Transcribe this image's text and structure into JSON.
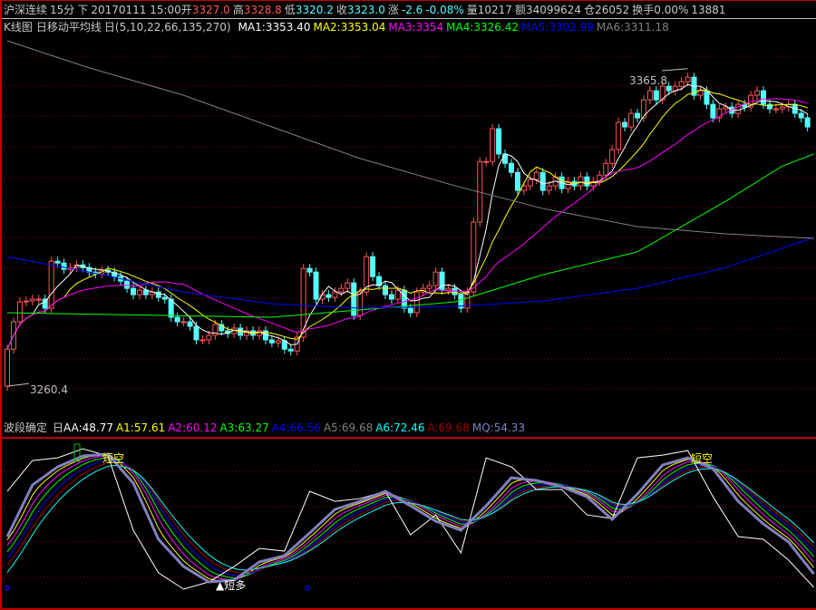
{
  "header": {
    "name": "沪深连续",
    "period": "15分",
    "direction": "下",
    "datetime": "20170111 15:00",
    "open_label": "开",
    "open": "3327.0",
    "high_label": "高",
    "high": "3328.8",
    "low_label": "低",
    "low": "3320.2",
    "close_label": "收",
    "close": "3323.0",
    "change_label": "涨",
    "change": "-2.6",
    "change_pct": "-0.08%",
    "volume_label": "量",
    "volume": "10217",
    "amount_label": "额",
    "amount": "34099624",
    "oi_label": "仓",
    "oi": "26052",
    "turnover_label": "换手",
    "turnover": "0.00%",
    "extra": "13881"
  },
  "ma_legend": {
    "chart_name": "K线图",
    "indicator": "日移动平均线",
    "params": "日(5,10,22,66,135,270)",
    "items": [
      {
        "label": "MA1:3353.40",
        "color": "#ffffff"
      },
      {
        "label": "MA2:3353.04",
        "color": "#ffff00"
      },
      {
        "label": "MA3:3354",
        "color": "#ff00ff"
      },
      {
        "label": "MA4:3326.42",
        "color": "#00ff00"
      },
      {
        "label": "MA5:3302.99",
        "color": "#0000ff"
      },
      {
        "label": "MA6:3311.18",
        "color": "#808080"
      }
    ]
  },
  "indicator_legend": {
    "name": "波段确定",
    "prefix": "日",
    "items": [
      {
        "label": "AA:48.77",
        "color": "#ffffff"
      },
      {
        "label": "A1:57.61",
        "color": "#ffff00"
      },
      {
        "label": "A2:60.12",
        "color": "#ff00ff"
      },
      {
        "label": "A3:63.27",
        "color": "#00ff00"
      },
      {
        "label": "A4:66.56",
        "color": "#0000ff"
      },
      {
        "label": "A5:69.68",
        "color": "#808080"
      },
      {
        "label": "A6:72.46",
        "color": "#00ffff"
      },
      {
        "label": "A:69.68",
        "color": "#a00000"
      },
      {
        "label": "MQ:54.33",
        "color": "#8080c0"
      }
    ]
  },
  "annotations": {
    "high_label": "3365.8",
    "low_label": "3260.4",
    "short_sell_1": "短空",
    "short_sell_2": "短空",
    "short_buy": "▲短多"
  },
  "colors": {
    "up": "#ff5555",
    "down": "#54fcfc",
    "grid": "#8b0000",
    "border": "#c00000"
  },
  "chart_data": [
    {
      "type": "candlestick",
      "ylim": [
        3249.6,
        3376.6
      ],
      "grid": true,
      "first_open": 3260.4,
      "closes": [
        3272.7,
        3281.8,
        3288.4,
        3288.7,
        3289.3,
        3289.3,
        3286.3,
        3301.9,
        3301.3,
        3299.2,
        3299.8,
        3300.7,
        3299.8,
        3298.3,
        3297.7,
        3298.9,
        3298.3,
        3296.8,
        3295.3,
        3292.9,
        3290.8,
        3292.3,
        3290.8,
        3291.7,
        3289.9,
        3289.3,
        3283.3,
        3281.8,
        3281.8,
        3280.3,
        3275.8,
        3275.8,
        3277.3,
        3280.9,
        3278.8,
        3277.9,
        3279.7,
        3277.3,
        3278.8,
        3277.3,
        3278.8,
        3275.8,
        3274.8,
        3275.5,
        3272.7,
        3272.1,
        3276.7,
        3299.5,
        3298.3,
        3289.3,
        3290.8,
        3289.9,
        3291.7,
        3292.9,
        3294.7,
        3283.9,
        3291.7,
        3303.4,
        3296.8,
        3293.8,
        3290.8,
        3289.3,
        3292.3,
        3286.3,
        3284.8,
        3291.7,
        3292.9,
        3293.8,
        3298.3,
        3292.3,
        3292.9,
        3290.8,
        3286.3,
        3291.7,
        3314.9,
        3335.0,
        3335.0,
        3345.9,
        3337.5,
        3334.4,
        3331.4,
        3325.4,
        3326.9,
        3329.0,
        3331.4,
        3325.4,
        3326.9,
        3329.9,
        3326.0,
        3328.4,
        3326.9,
        3329.9,
        3326.9,
        3328.4,
        3330.5,
        3334.4,
        3339.0,
        3348.0,
        3346.5,
        3351.0,
        3349.5,
        3355.5,
        3358.5,
        3355.5,
        3360.0,
        3358.5,
        3360.0,
        3361.5,
        3363.0,
        3357.0,
        3358.5,
        3354.0,
        3349.5,
        3352.5,
        3353.1,
        3351.0,
        3354.0,
        3353.1,
        3357.0,
        3358.5,
        3354.0,
        3352.5,
        3352.5,
        3353.1,
        3354.0,
        3351.0,
        3349.5,
        3346.5
      ],
      "ma_periods": [
        5,
        10,
        22
      ],
      "ma_long": {
        "MA4": [
          [
            0,
            3284.8
          ],
          [
            42,
            3283.3
          ],
          [
            71,
            3288.4
          ],
          [
            85,
            3297.4
          ],
          [
            100,
            3305.0
          ],
          [
            114,
            3321.8
          ],
          [
            123,
            3333.5
          ],
          [
            128,
            3337.5
          ]
        ],
        "MA5": [
          [
            0,
            3303.4
          ],
          [
            13,
            3298.3
          ],
          [
            28,
            3291.7
          ],
          [
            42,
            3287.8
          ],
          [
            56,
            3286.3
          ],
          [
            71,
            3286.9
          ],
          [
            85,
            3288.7
          ],
          [
            100,
            3292.9
          ],
          [
            114,
            3299.8
          ],
          [
            128,
            3309.8
          ]
        ],
        "MA6": [
          [
            0,
            3375.1
          ],
          [
            13,
            3366.1
          ],
          [
            28,
            3357.0
          ],
          [
            42,
            3346.5
          ],
          [
            56,
            3336.0
          ],
          [
            71,
            3327.0
          ],
          [
            85,
            3319.4
          ],
          [
            100,
            3313.4
          ],
          [
            114,
            3311.0
          ],
          [
            128,
            3309.5
          ]
        ]
      },
      "high": 3365.8,
      "low": 3260.4
    },
    {
      "type": "line",
      "ylim": [
        40.5,
        110.1
      ],
      "grid": true,
      "x_step_bars": 4,
      "series": [
        {
          "name": "MQ",
          "values": [
            69.83,
            91.26,
            98.78,
            103.29,
            104.04,
            92.01,
            68.7,
            57.42,
            51.03,
            51.78,
            59.3,
            61.93,
            71.33,
            81.11,
            84.49,
            88.63,
            82.61,
            76.22,
            72.46,
            82.61,
            94.27,
            93.14,
            90.51,
            86.37,
            76.97,
            87.5,
            99.53,
            102.54,
            98.03,
            84.49,
            75.09,
            67.57,
            54.33
          ]
        },
        {
          "name": "AA",
          "values": [
            88.63,
            101.41,
            102.54,
            106.3,
            103.29,
            72.46,
            54.79,
            48.02,
            51.03,
            57.42,
            64.94,
            63.81,
            88.63,
            84.49,
            85.62,
            88.63,
            70.58,
            78.85,
            63.06,
            102.54,
            98.78,
            89.38,
            89.38,
            78.85,
            77.35,
            102.54,
            103.67,
            105.55,
            86.37,
            69.83,
            68.7,
            60.05,
            48.77
          ]
        }
      ]
    }
  ]
}
